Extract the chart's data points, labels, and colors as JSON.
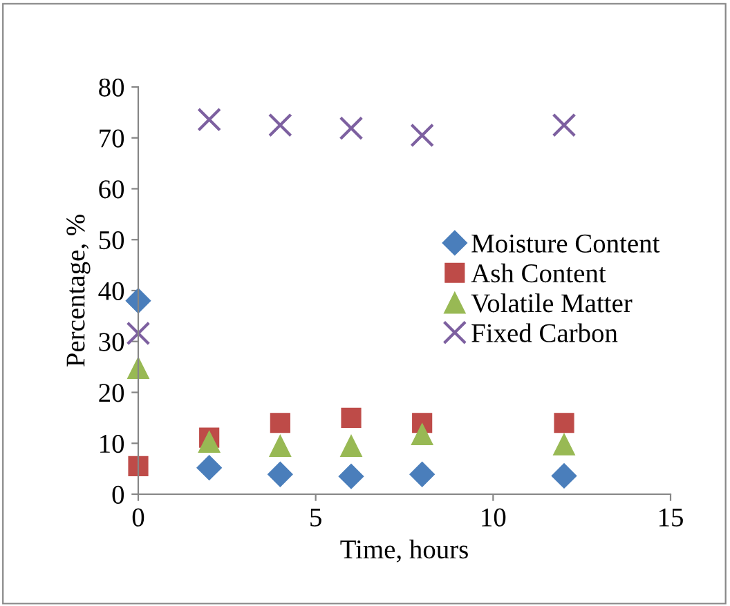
{
  "chart_data": {
    "type": "scatter",
    "xlabel": "Time, hours",
    "ylabel": "Percentage, %",
    "x": [
      0,
      2,
      4,
      6,
      8,
      12
    ],
    "xlim": [
      0,
      15
    ],
    "xticks": [
      0,
      5,
      10,
      15
    ],
    "ylim": [
      0,
      80
    ],
    "yticks": [
      0,
      10,
      20,
      30,
      40,
      50,
      60,
      70,
      80
    ],
    "grid": false,
    "legend": "right",
    "series": [
      {
        "name": "Moisture Content",
        "color": "#4a7ebb",
        "marker": "diamond",
        "values": [
          38,
          5.2,
          3.9,
          3.5,
          3.9,
          3.6
        ]
      },
      {
        "name": "Ash Content",
        "color": "#be4b48",
        "marker": "square",
        "values": [
          5.5,
          11.1,
          14,
          15,
          14,
          14
        ]
      },
      {
        "name": "Volatile Matter",
        "color": "#98b954",
        "marker": "triangle",
        "values": [
          24.8,
          10.3,
          9.5,
          9.5,
          11.8,
          9.8
        ]
      },
      {
        "name": "Fixed Carbon",
        "color": "#7d60a0",
        "marker": "cross",
        "values": [
          31.6,
          73.6,
          72.5,
          71.9,
          70.5,
          72.5
        ]
      }
    ]
  }
}
